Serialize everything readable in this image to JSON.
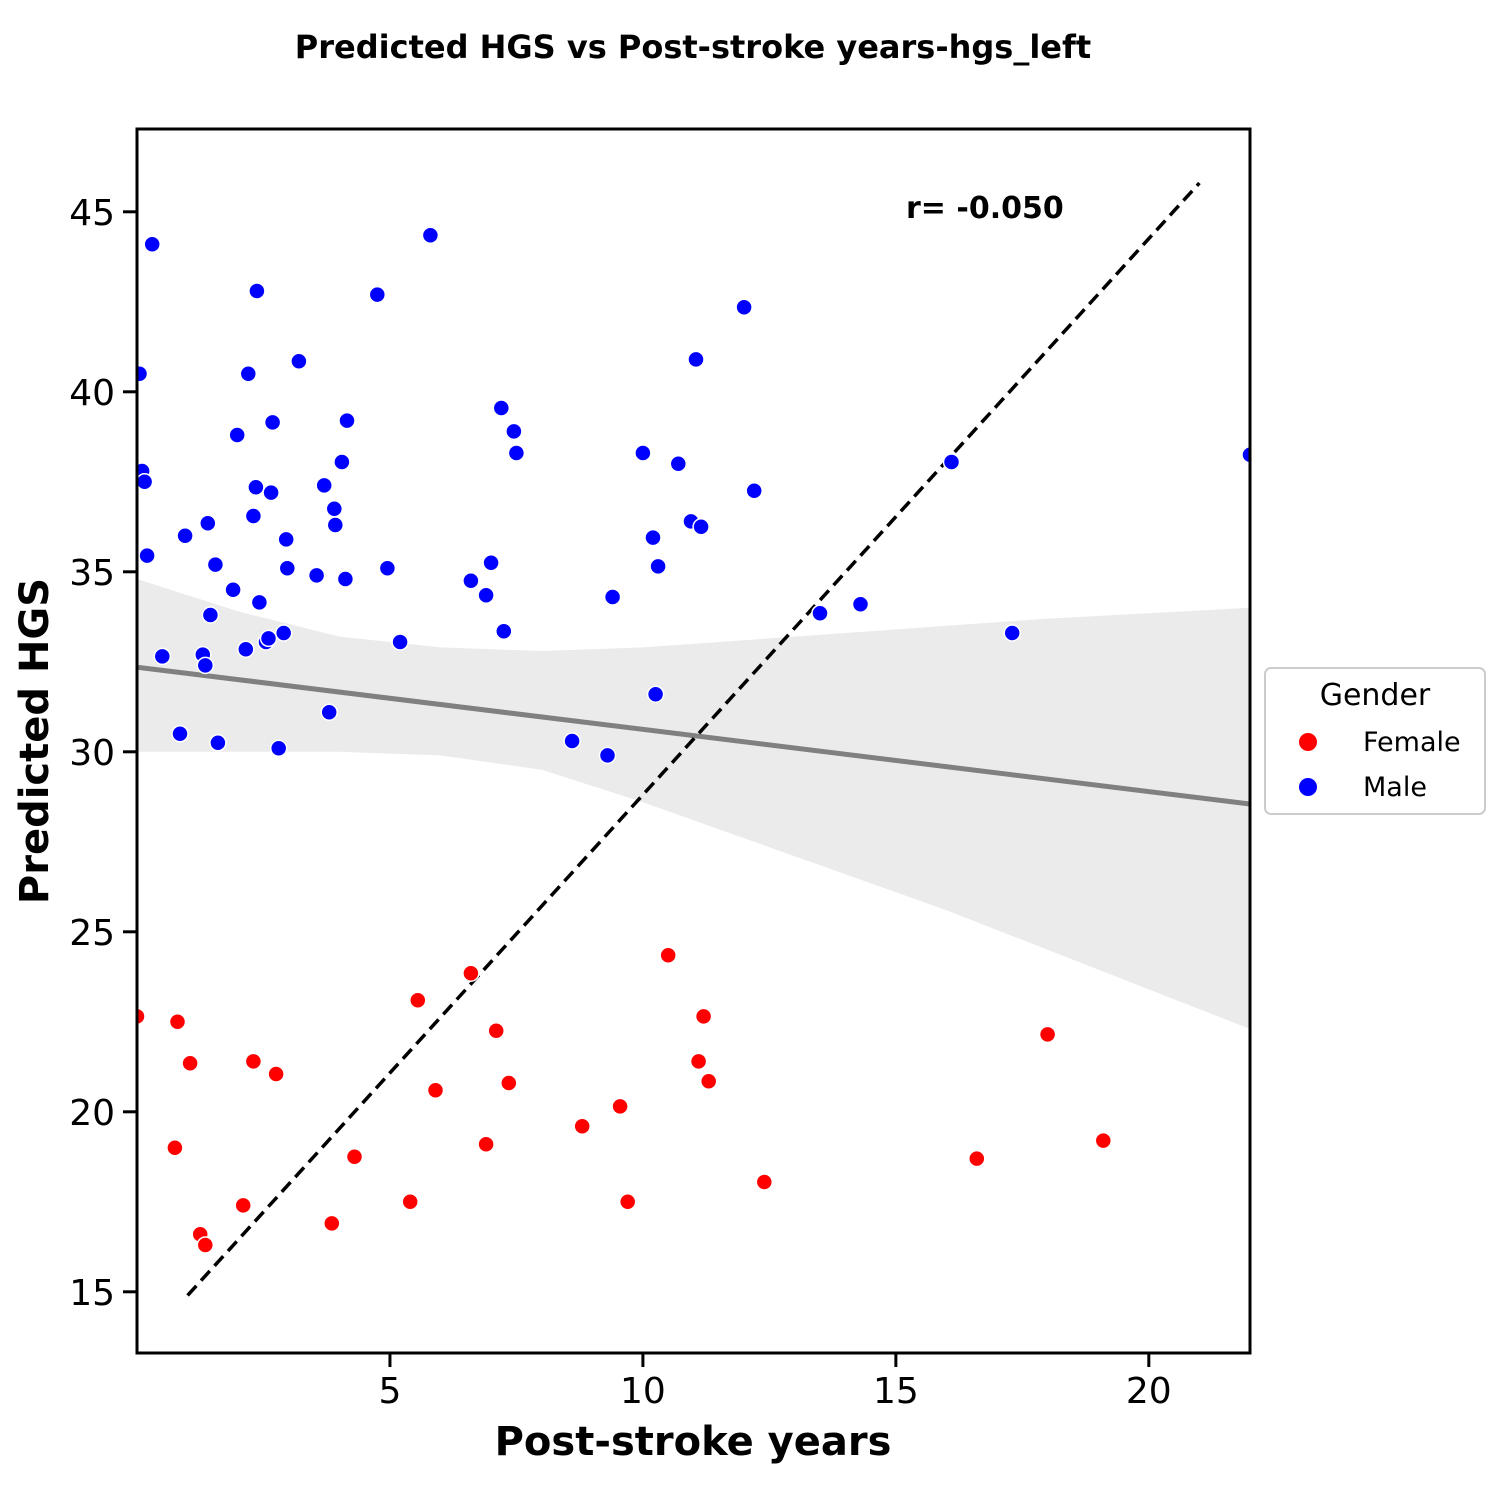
{
  "chart_data": {
    "type": "scatter",
    "title": "Predicted HGS vs Post-stroke years-hgs_left",
    "xlabel": "Post-stroke years",
    "ylabel": "Predicted HGS",
    "xlim": [
      0,
      22
    ],
    "ylim": [
      13.3,
      47.3
    ],
    "xticks": [
      5,
      10,
      15,
      20
    ],
    "yticks": [
      15,
      20,
      25,
      30,
      35,
      40,
      45
    ],
    "grid": false,
    "legend": {
      "title": "Gender",
      "placement": "center-right outside",
      "entries": [
        {
          "label": "Female",
          "color": "#ff0000"
        },
        {
          "label": "Male",
          "color": "#0000ff"
        }
      ]
    },
    "annotation": "r= -0.050",
    "identity_line": {
      "x": [
        1.0,
        21.0
      ],
      "y": [
        14.9,
        45.8
      ],
      "style": "dashed",
      "color": "#000000"
    },
    "regression_line": {
      "x": [
        0,
        22
      ],
      "y": [
        32.35,
        28.55
      ],
      "color": "#808080"
    },
    "confidence_band": {
      "x": [
        0,
        2,
        4,
        6,
        8,
        10,
        12,
        14,
        16,
        18,
        20,
        22
      ],
      "upper": [
        34.8,
        33.9,
        33.2,
        32.9,
        32.8,
        32.9,
        33.1,
        33.3,
        33.5,
        33.7,
        33.85,
        34.0
      ],
      "lower": [
        30.0,
        30.0,
        30.0,
        29.9,
        29.5,
        28.6,
        27.6,
        26.6,
        25.6,
        24.5,
        23.4,
        22.3
      ],
      "color": "#ebebeb"
    },
    "series": [
      {
        "name": "Female",
        "color": "#ff0000",
        "points": [
          [
            0.0,
            22.65
          ],
          [
            0.8,
            22.5
          ],
          [
            1.05,
            21.35
          ],
          [
            0.75,
            19.0
          ],
          [
            1.25,
            16.6
          ],
          [
            1.35,
            16.3
          ],
          [
            2.1,
            17.4
          ],
          [
            2.3,
            21.4
          ],
          [
            2.75,
            21.05
          ],
          [
            3.85,
            16.9
          ],
          [
            4.3,
            18.75
          ],
          [
            5.4,
            17.5
          ],
          [
            5.55,
            23.1
          ],
          [
            5.9,
            20.6
          ],
          [
            6.6,
            23.85
          ],
          [
            6.9,
            19.1
          ],
          [
            7.1,
            22.25
          ],
          [
            7.35,
            20.8
          ],
          [
            8.8,
            19.6
          ],
          [
            9.55,
            20.15
          ],
          [
            9.7,
            17.5
          ],
          [
            10.5,
            24.35
          ],
          [
            11.1,
            21.4
          ],
          [
            11.2,
            22.65
          ],
          [
            11.3,
            20.85
          ],
          [
            12.4,
            18.05
          ],
          [
            16.6,
            18.7
          ],
          [
            18.0,
            22.15
          ],
          [
            19.1,
            19.2
          ]
        ]
      },
      {
        "name": "Male",
        "color": "#0000ff",
        "points": [
          [
            0.05,
            40.5
          ],
          [
            0.1,
            37.8
          ],
          [
            0.15,
            37.5
          ],
          [
            0.2,
            35.45
          ],
          [
            0.3,
            44.1
          ],
          [
            0.5,
            32.65
          ],
          [
            0.85,
            30.5
          ],
          [
            0.95,
            36.0
          ],
          [
            1.3,
            32.7
          ],
          [
            1.35,
            32.4
          ],
          [
            1.4,
            36.35
          ],
          [
            1.45,
            33.8
          ],
          [
            1.55,
            35.2
          ],
          [
            1.6,
            30.25
          ],
          [
            1.9,
            34.5
          ],
          [
            1.98,
            38.8
          ],
          [
            2.15,
            32.85
          ],
          [
            2.2,
            40.5
          ],
          [
            2.3,
            36.55
          ],
          [
            2.35,
            37.35
          ],
          [
            2.37,
            42.8
          ],
          [
            2.42,
            34.15
          ],
          [
            2.55,
            33.05
          ],
          [
            2.6,
            33.15
          ],
          [
            2.65,
            37.2
          ],
          [
            2.68,
            39.15
          ],
          [
            2.8,
            30.1
          ],
          [
            2.9,
            33.3
          ],
          [
            2.95,
            35.9
          ],
          [
            2.97,
            35.1
          ],
          [
            3.2,
            40.85
          ],
          [
            3.55,
            34.9
          ],
          [
            3.7,
            37.4
          ],
          [
            3.8,
            31.1
          ],
          [
            3.9,
            36.75
          ],
          [
            3.92,
            36.3
          ],
          [
            4.05,
            38.05
          ],
          [
            4.12,
            34.8
          ],
          [
            4.15,
            39.2
          ],
          [
            4.75,
            42.7
          ],
          [
            4.95,
            35.1
          ],
          [
            5.2,
            33.05
          ],
          [
            5.8,
            44.35
          ],
          [
            6.6,
            34.75
          ],
          [
            6.9,
            34.35
          ],
          [
            7.0,
            35.25
          ],
          [
            7.2,
            39.55
          ],
          [
            7.25,
            33.35
          ],
          [
            7.45,
            38.9
          ],
          [
            7.5,
            38.3
          ],
          [
            8.6,
            30.3
          ],
          [
            9.3,
            29.9
          ],
          [
            9.4,
            34.3
          ],
          [
            10.0,
            38.3
          ],
          [
            10.2,
            35.95
          ],
          [
            10.25,
            31.6
          ],
          [
            10.3,
            35.15
          ],
          [
            10.7,
            38.0
          ],
          [
            10.95,
            36.4
          ],
          [
            11.05,
            40.9
          ],
          [
            11.15,
            36.25
          ],
          [
            12.0,
            42.35
          ],
          [
            12.2,
            37.25
          ],
          [
            13.5,
            33.85
          ],
          [
            14.3,
            34.1
          ],
          [
            16.1,
            38.05
          ],
          [
            17.3,
            33.3
          ],
          [
            22.0,
            38.25
          ]
        ]
      }
    ]
  }
}
